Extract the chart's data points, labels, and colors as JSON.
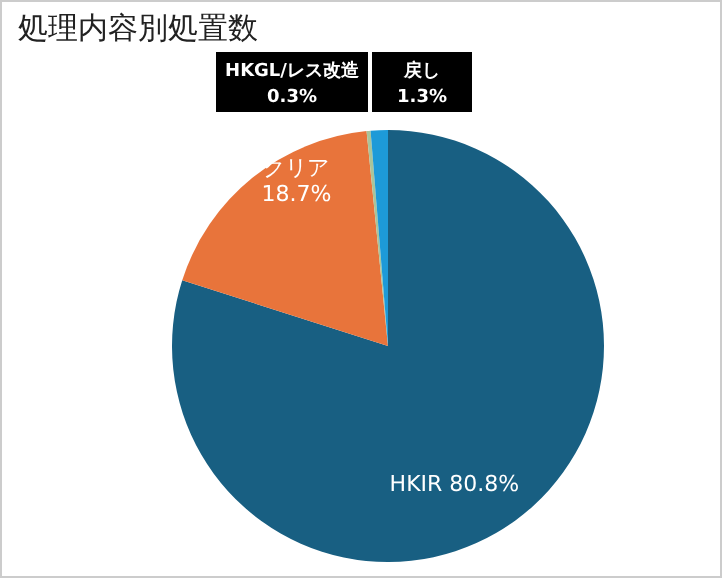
{
  "chart_data": {
    "type": "pie",
    "title": "処理内容別処置数",
    "categories": [
      "HKIR",
      "クリア",
      "HKGL/レス改造",
      "戻し"
    ],
    "values": [
      80.8,
      18.7,
      0.3,
      1.3
    ],
    "colors": [
      "#185f82",
      "#e8743b",
      "#a9c49a",
      "#1d9ad8"
    ],
    "value_labels": [
      "80.8%",
      "18.7%",
      "0.3%",
      "1.3%"
    ],
    "legend": false
  }
}
